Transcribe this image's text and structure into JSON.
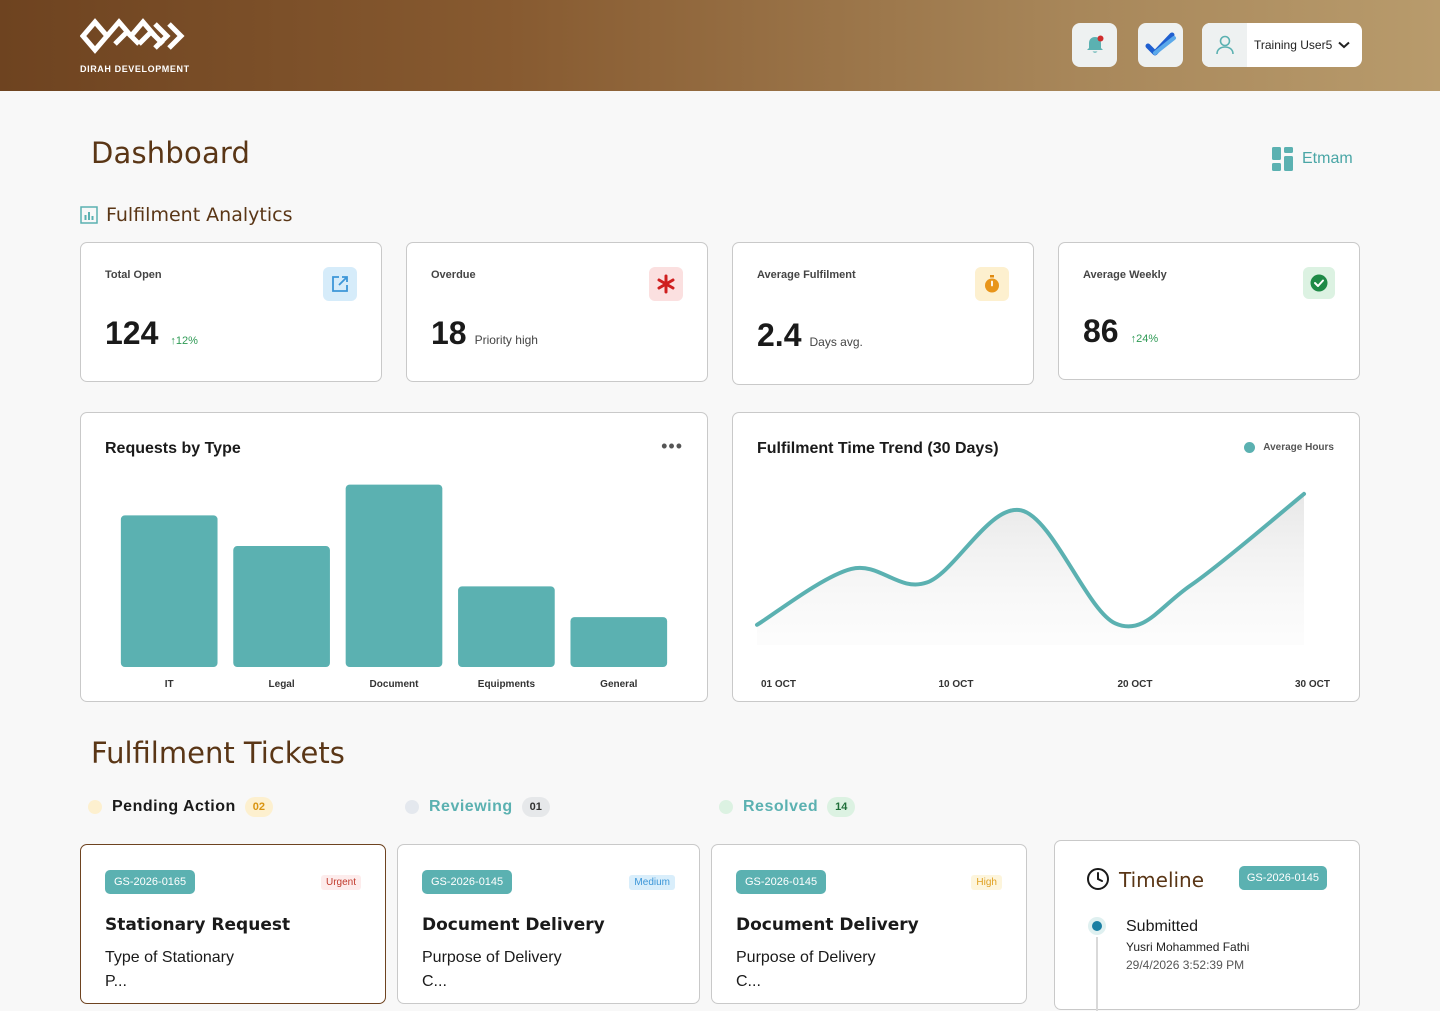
{
  "header": {
    "brand": "DIRAH DEVELOPMENT",
    "user_name": "Training User5"
  },
  "page": {
    "title": "Dashboard",
    "app_link": "Etmam"
  },
  "analytics": {
    "title": "Fulfilment Analytics",
    "stats": [
      {
        "label": "Total Open",
        "value": "124",
        "sub": "",
        "trend": "↑12%"
      },
      {
        "label": "Overdue",
        "value": "18",
        "sub": "Priority high",
        "trend": ""
      },
      {
        "label": "Average Fulfilment",
        "value": "2.4",
        "sub": "Days avg.",
        "trend": ""
      },
      {
        "label": "Average Weekly",
        "value": "86",
        "sub": "",
        "trend": "↑24%"
      }
    ]
  },
  "chart_data": [
    {
      "type": "bar",
      "title": "Requests by Type",
      "categories": [
        "IT",
        "Legal",
        "Document",
        "Equipments",
        "General"
      ],
      "values": [
        79,
        63,
        95,
        42,
        26
      ],
      "ylim": [
        0,
        100
      ],
      "color": "#5bb1b1",
      "grid": false
    },
    {
      "type": "line",
      "title": "Fulfilment Time Trend (30 Days)",
      "legend": [
        "Average Hours"
      ],
      "legend_position": "top-right",
      "x_ticks": [
        "01 OCT",
        "10 OCT",
        "20 OCT",
        "30 OCT"
      ],
      "x": [
        1,
        6,
        10,
        15,
        20,
        24,
        30
      ],
      "values": [
        6,
        47,
        37,
        90,
        7,
        35,
        102
      ],
      "ylim": [
        0,
        110
      ],
      "color": "#5bb1b1",
      "grid": false
    }
  ],
  "tickets": {
    "title": "Fulfilment Tickets",
    "tabs": [
      {
        "label": "Pending Action",
        "count": "02"
      },
      {
        "label": "Reviewing",
        "count": "01"
      },
      {
        "label": "Resolved",
        "count": "14"
      }
    ],
    "cards": [
      {
        "id": "GS-2026-0165",
        "priority": "Urgent",
        "title": "Stationary Request",
        "field": "Type of Stationary",
        "cut": "P..."
      },
      {
        "id": "GS-2026-0145",
        "priority": "Medium",
        "title": "Document Delivery",
        "field": "Purpose of Delivery",
        "cut": "C..."
      },
      {
        "id": "GS-2026-0145",
        "priority": "High",
        "title": "Document Delivery",
        "field": "Purpose of Delivery",
        "cut": "C..."
      }
    ]
  },
  "timeline": {
    "title": "Timeline",
    "ticket_id": "GS-2026-0145",
    "event": "Submitted",
    "person": "Yusri Mohammed Fathi",
    "date": "29/4/2026 3:52:39 PM"
  }
}
